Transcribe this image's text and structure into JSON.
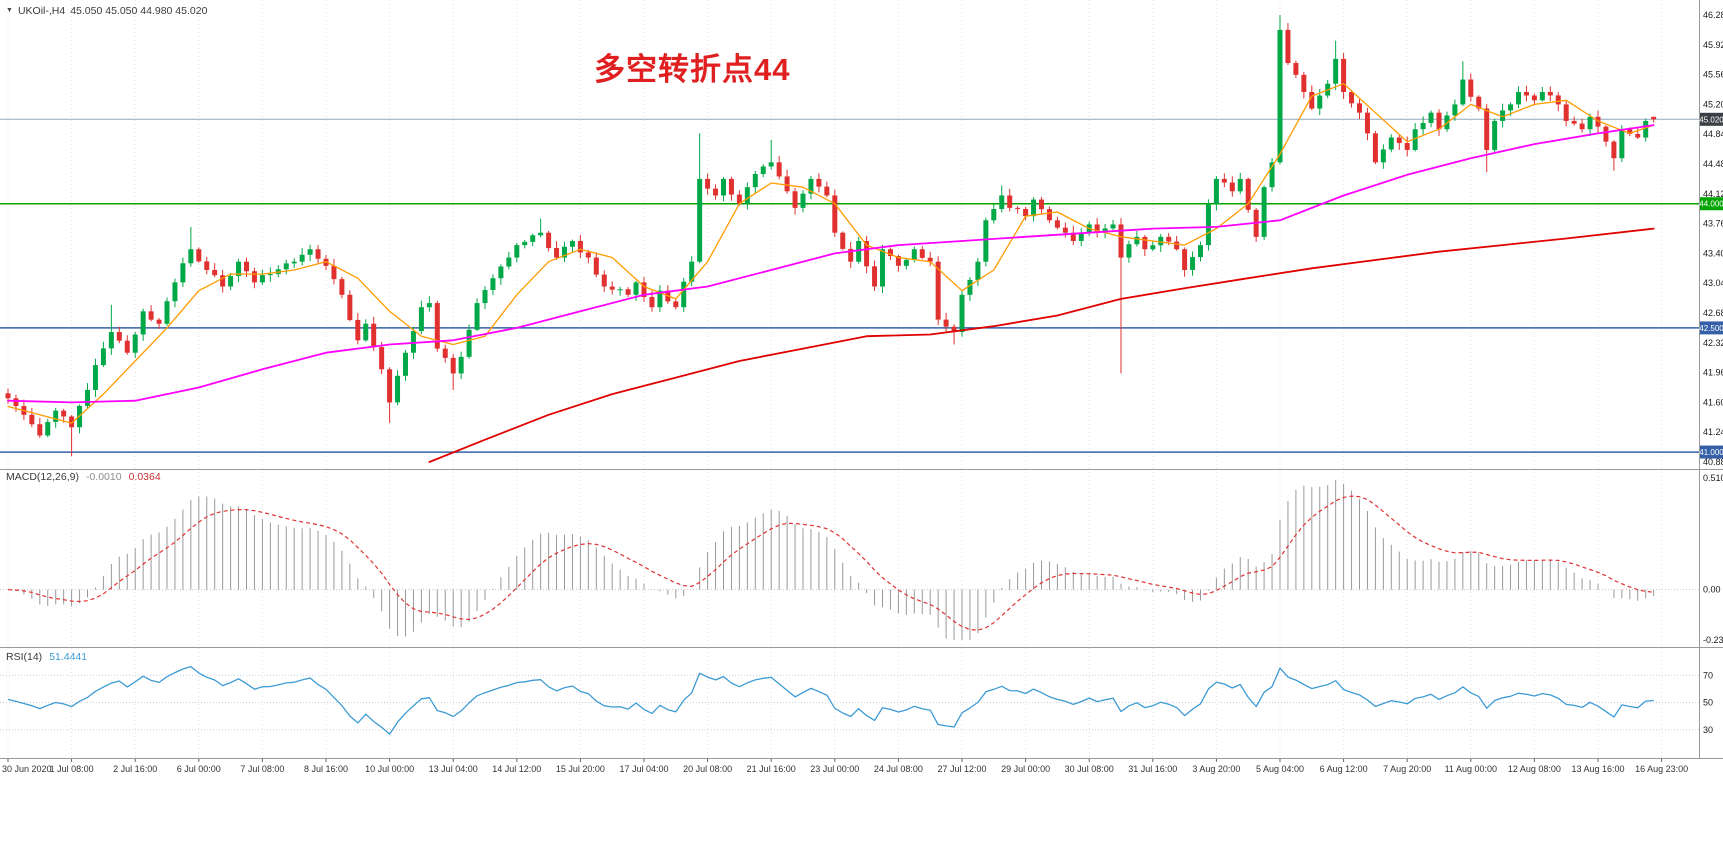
{
  "window": {
    "collapse_icon": "▼",
    "symbol_label": "UKOil-,H4",
    "quote_text": "45.050 45.050 44.980 45.020"
  },
  "annotation": {
    "text": "多空转折点44",
    "color": "#e02020"
  },
  "panels": {
    "macd": {
      "title": "MACD(12,26,9)",
      "value_main": "-0.0010",
      "value_signal": "0.0364",
      "ticks": [
        "0.5107",
        "0.00",
        "-0.2303"
      ],
      "tick_values": [
        0.5107,
        0.0,
        -0.2303
      ]
    },
    "rsi": {
      "title": "RSI(14)",
      "value": "51.4441",
      "ticks": [
        "70",
        "50",
        "30"
      ],
      "levels": [
        70,
        50,
        30
      ]
    }
  },
  "chart_data": {
    "type": "candlestick",
    "symbol": "UKOil-",
    "timeframe": "H4",
    "quote": {
      "open": 45.05,
      "high": 45.05,
      "low": 44.98,
      "close": 45.02
    },
    "bar_count": 208,
    "bars_per_label": 8,
    "y_axis": {
      "min": 40.82,
      "max": 46.34,
      "tick_step": 0.36,
      "ticks": [
        "46.280",
        "45.920",
        "45.560",
        "45.200",
        "44.840",
        "44.480",
        "44.120",
        "43.760",
        "43.400",
        "43.040",
        "42.680",
        "42.320",
        "41.960",
        "41.600",
        "41.240",
        "40.880"
      ]
    },
    "x_axis": {
      "labels": [
        "30 Jun 2020",
        "1 Jul 08:00",
        "2 Jul 16:00",
        "6 Jul 00:00",
        "7 Jul 08:00",
        "8 Jul 16:00",
        "10 Jul 00:00",
        "13 Jul 04:00",
        "14 Jul 12:00",
        "15 Jul 20:00",
        "17 Jul 04:00",
        "20 Jul 08:00",
        "21 Jul 16:00",
        "23 Jul 00:00",
        "24 Jul 08:00",
        "27 Jul 12:00",
        "29 Jul 00:00",
        "30 Jul 08:00",
        "31 Jul 16:00",
        "3 Aug 20:00",
        "5 Aug 04:00",
        "6 Aug 12:00",
        "7 Aug 20:00",
        "11 Aug 00:00",
        "12 Aug 08:00",
        "13 Aug 16:00",
        "16 Aug 23:00"
      ]
    },
    "price_lines": [
      {
        "name": "current-price",
        "price": 45.02,
        "label": "45.020",
        "line_color": "#90a8bd",
        "box_color": "#3a3f46"
      },
      {
        "name": "level-44000",
        "price": 44.0,
        "label": "44.000",
        "line_color": "#00a400",
        "box_color": "#00a400"
      },
      {
        "name": "level-42500",
        "price": 42.5,
        "label": "42.500",
        "line_color": "#3560a8",
        "box_color": "#3560a8"
      },
      {
        "name": "level-41000",
        "price": 41.0,
        "label": "41.000",
        "line_color": "#3560a8",
        "box_color": "#3560a8"
      }
    ],
    "price_path": [
      [
        0,
        41.65
      ],
      [
        2,
        41.45
      ],
      [
        4,
        41.2
      ],
      [
        6,
        41.5
      ],
      [
        8,
        41.3
      ],
      [
        10,
        41.75
      ],
      [
        11,
        42.05
      ],
      [
        13,
        42.45
      ],
      [
        15,
        42.2
      ],
      [
        17,
        42.7
      ],
      [
        19,
        42.55
      ],
      [
        21,
        43.05
      ],
      [
        23,
        43.45
      ],
      [
        25,
        43.2
      ],
      [
        27,
        43.0
      ],
      [
        29,
        43.3
      ],
      [
        31,
        43.05
      ],
      [
        33,
        43.15
      ],
      [
        36,
        43.3
      ],
      [
        38,
        43.45
      ],
      [
        40,
        43.25
      ],
      [
        42,
        42.9
      ],
      [
        44,
        42.35
      ],
      [
        45,
        42.55
      ],
      [
        47,
        42.0
      ],
      [
        48,
        41.6
      ],
      [
        50,
        42.2
      ],
      [
        52,
        42.75
      ],
      [
        53,
        42.8
      ],
      [
        54,
        42.25
      ],
      [
        56,
        41.95
      ],
      [
        57,
        42.15
      ],
      [
        59,
        42.8
      ],
      [
        61,
        43.1
      ],
      [
        63,
        43.35
      ],
      [
        64,
        43.5
      ],
      [
        67,
        43.65
      ],
      [
        69,
        43.35
      ],
      [
        71,
        43.55
      ],
      [
        73,
        43.35
      ],
      [
        75,
        43.0
      ],
      [
        78,
        42.9
      ],
      [
        79,
        43.05
      ],
      [
        81,
        42.75
      ],
      [
        82,
        42.95
      ],
      [
        84,
        42.75
      ],
      [
        86,
        43.3
      ],
      [
        87,
        44.3
      ],
      [
        89,
        44.1
      ],
      [
        90,
        44.3
      ],
      [
        92,
        44.0
      ],
      [
        93,
        44.2
      ],
      [
        95,
        44.45
      ],
      [
        96,
        44.5
      ],
      [
        98,
        44.15
      ],
      [
        99,
        43.95
      ],
      [
        101,
        44.3
      ],
      [
        103,
        44.1
      ],
      [
        104,
        43.65
      ],
      [
        106,
        43.3
      ],
      [
        107,
        43.55
      ],
      [
        109,
        43.0
      ],
      [
        110,
        43.45
      ],
      [
        112,
        43.25
      ],
      [
        114,
        43.45
      ],
      [
        116,
        43.3
      ],
      [
        117,
        42.6
      ],
      [
        119,
        42.45
      ],
      [
        120,
        42.9
      ],
      [
        122,
        43.3
      ],
      [
        123,
        43.8
      ],
      [
        125,
        44.1
      ],
      [
        126,
        43.95
      ],
      [
        128,
        43.85
      ],
      [
        129,
        44.05
      ],
      [
        131,
        43.8
      ],
      [
        133,
        43.65
      ],
      [
        134,
        43.55
      ],
      [
        136,
        43.75
      ],
      [
        137,
        43.65
      ],
      [
        139,
        43.75
      ],
      [
        140,
        43.35
      ],
      [
        142,
        43.6
      ],
      [
        143,
        43.45
      ],
      [
        145,
        43.6
      ],
      [
        147,
        43.45
      ],
      [
        148,
        43.2
      ],
      [
        150,
        43.5
      ],
      [
        151,
        44.0
      ],
      [
        152,
        44.3
      ],
      [
        154,
        44.15
      ],
      [
        155,
        44.3
      ],
      [
        157,
        43.6
      ],
      [
        158,
        44.2
      ],
      [
        159,
        44.5
      ],
      [
        160,
        46.1
      ],
      [
        161,
        45.7
      ],
      [
        163,
        45.35
      ],
      [
        164,
        45.15
      ],
      [
        166,
        45.45
      ],
      [
        167,
        45.75
      ],
      [
        168,
        45.35
      ],
      [
        170,
        45.1
      ],
      [
        171,
        44.85
      ],
      [
        172,
        44.5
      ],
      [
        174,
        44.8
      ],
      [
        176,
        44.65
      ],
      [
        177,
        44.9
      ],
      [
        179,
        45.1
      ],
      [
        180,
        44.9
      ],
      [
        182,
        45.2
      ],
      [
        183,
        45.5
      ],
      [
        185,
        45.15
      ],
      [
        186,
        44.65
      ],
      [
        187,
        45.0
      ],
      [
        189,
        45.2
      ],
      [
        190,
        45.35
      ],
      [
        192,
        45.25
      ],
      [
        193,
        45.35
      ],
      [
        195,
        45.2
      ],
      [
        196,
        45.0
      ],
      [
        198,
        44.9
      ],
      [
        199,
        45.05
      ],
      [
        201,
        44.75
      ],
      [
        202,
        44.55
      ],
      [
        203,
        44.9
      ],
      [
        205,
        44.8
      ],
      [
        206,
        45.0
      ],
      [
        207,
        45.02
      ]
    ],
    "wick_overrides": {
      "8": {
        "l": 40.95
      },
      "13": {
        "h": 42.78
      },
      "23": {
        "h": 43.72
      },
      "48": {
        "l": 41.35
      },
      "56": {
        "l": 41.75
      },
      "67": {
        "h": 43.82
      },
      "87": {
        "h": 44.85
      },
      "96": {
        "h": 44.77
      },
      "119": {
        "l": 42.3
      },
      "125": {
        "h": 44.22
      },
      "140": {
        "l": 41.95
      },
      "160": {
        "h": 46.28
      },
      "167": {
        "h": 45.97
      },
      "183": {
        "h": 45.72
      },
      "186": {
        "l": 44.38
      },
      "202": {
        "l": 44.4
      }
    },
    "moving_averages": [
      {
        "name": "ma-fast-orange",
        "color": "#ff9c00",
        "width": 1.3,
        "path": [
          [
            0,
            41.55
          ],
          [
            4,
            41.45
          ],
          [
            8,
            41.35
          ],
          [
            12,
            41.7
          ],
          [
            16,
            42.1
          ],
          [
            20,
            42.5
          ],
          [
            24,
            42.95
          ],
          [
            28,
            43.15
          ],
          [
            32,
            43.15
          ],
          [
            36,
            43.2
          ],
          [
            40,
            43.3
          ],
          [
            44,
            43.1
          ],
          [
            48,
            42.7
          ],
          [
            52,
            42.4
          ],
          [
            56,
            42.3
          ],
          [
            60,
            42.4
          ],
          [
            64,
            42.9
          ],
          [
            68,
            43.3
          ],
          [
            72,
            43.45
          ],
          [
            76,
            43.35
          ],
          [
            80,
            43.0
          ],
          [
            84,
            42.85
          ],
          [
            88,
            43.3
          ],
          [
            92,
            44.0
          ],
          [
            96,
            44.25
          ],
          [
            100,
            44.2
          ],
          [
            104,
            44.0
          ],
          [
            108,
            43.5
          ],
          [
            112,
            43.35
          ],
          [
            116,
            43.3
          ],
          [
            120,
            42.95
          ],
          [
            124,
            43.2
          ],
          [
            128,
            43.85
          ],
          [
            132,
            43.9
          ],
          [
            136,
            43.7
          ],
          [
            140,
            43.6
          ],
          [
            144,
            43.55
          ],
          [
            148,
            43.5
          ],
          [
            152,
            43.7
          ],
          [
            156,
            44.0
          ],
          [
            160,
            44.6
          ],
          [
            164,
            45.3
          ],
          [
            168,
            45.45
          ],
          [
            172,
            45.1
          ],
          [
            176,
            44.75
          ],
          [
            180,
            44.9
          ],
          [
            184,
            45.2
          ],
          [
            188,
            45.05
          ],
          [
            192,
            45.2
          ],
          [
            196,
            45.25
          ],
          [
            200,
            45.0
          ],
          [
            204,
            44.85
          ],
          [
            207,
            44.95
          ]
        ]
      },
      {
        "name": "ma-mid-magenta",
        "color": "#ff00ff",
        "width": 1.8,
        "path": [
          [
            0,
            41.62
          ],
          [
            8,
            41.6
          ],
          [
            16,
            41.62
          ],
          [
            24,
            41.78
          ],
          [
            32,
            42.0
          ],
          [
            40,
            42.2
          ],
          [
            48,
            42.3
          ],
          [
            56,
            42.35
          ],
          [
            64,
            42.5
          ],
          [
            72,
            42.7
          ],
          [
            80,
            42.9
          ],
          [
            88,
            43.0
          ],
          [
            96,
            43.2
          ],
          [
            104,
            43.4
          ],
          [
            112,
            43.5
          ],
          [
            120,
            43.55
          ],
          [
            128,
            43.6
          ],
          [
            136,
            43.65
          ],
          [
            144,
            43.7
          ],
          [
            152,
            43.72
          ],
          [
            160,
            43.8
          ],
          [
            164,
            43.95
          ],
          [
            168,
            44.1
          ],
          [
            176,
            44.35
          ],
          [
            184,
            44.55
          ],
          [
            192,
            44.72
          ],
          [
            200,
            44.85
          ],
          [
            207,
            44.95
          ]
        ]
      },
      {
        "name": "ma-slow-red",
        "color": "#e00000",
        "width": 1.8,
        "path": [
          [
            53,
            40.88
          ],
          [
            60,
            41.15
          ],
          [
            68,
            41.45
          ],
          [
            76,
            41.7
          ],
          [
            84,
            41.9
          ],
          [
            92,
            42.1
          ],
          [
            100,
            42.25
          ],
          [
            108,
            42.4
          ],
          [
            116,
            42.42
          ],
          [
            124,
            42.52
          ],
          [
            132,
            42.65
          ],
          [
            140,
            42.85
          ],
          [
            148,
            42.98
          ],
          [
            156,
            43.1
          ],
          [
            164,
            43.22
          ],
          [
            172,
            43.32
          ],
          [
            180,
            43.42
          ],
          [
            188,
            43.5
          ],
          [
            196,
            43.58
          ],
          [
            207,
            43.7
          ]
        ]
      }
    ],
    "macd_scale": {
      "min": -0.2303,
      "max": 0.5107
    },
    "colors": {
      "bull": "#00a847",
      "bear": "#e13030",
      "grid": "#e2e2e2",
      "separator": "#9a9a9a",
      "histogram": "#999999",
      "macd_signal": "#e03232",
      "rsi_line": "#3d9bd4",
      "axis_text": "#1a1a1a",
      "rsi_level": "#c5cfe0"
    }
  }
}
